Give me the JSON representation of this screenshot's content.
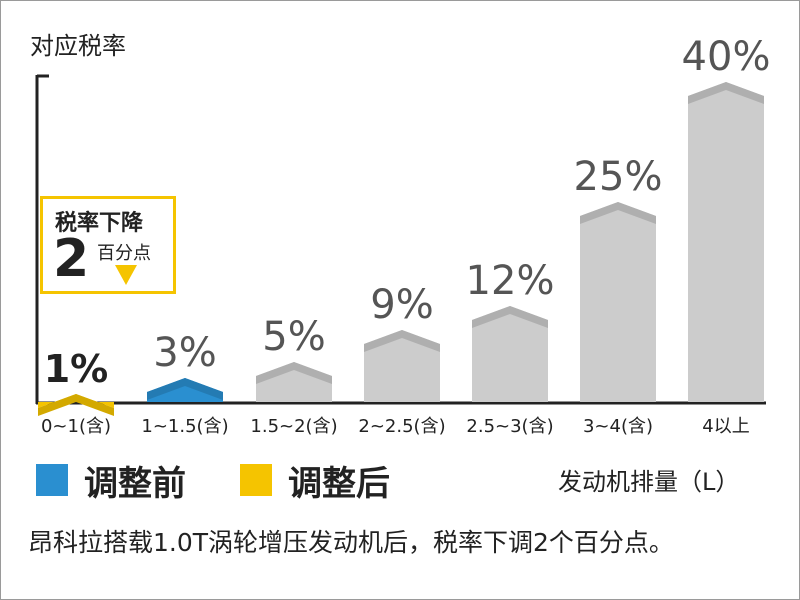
{
  "chart_data": {
    "type": "bar",
    "ylabel": "对应税率",
    "xlabel": "发动机排量（L）",
    "categories": [
      "0~1(含)",
      "1~1.5(含)",
      "1.5~2(含)",
      "2~2.5(含)",
      "2.5~3(含)",
      "3~4(含)",
      "4以上"
    ],
    "value_labels": [
      "1%",
      "3%",
      "5%",
      "9%",
      "12%",
      "25%",
      "40%"
    ],
    "series": [
      {
        "name": "调整前",
        "color": "#2a8fd0",
        "values": [
          null,
          3,
          5,
          9,
          12,
          25,
          40
        ]
      },
      {
        "name": "调整后",
        "color": "#f5c400",
        "values": [
          1,
          null,
          null,
          null,
          null,
          null,
          null
        ]
      }
    ],
    "ylim": [
      0,
      40
    ],
    "grid": false,
    "default_bar_color": "#cccccc"
  },
  "legend": [
    {
      "label": "调整前",
      "color": "#2a8fd0"
    },
    {
      "label": "调整后",
      "color": "#f5c400"
    }
  ],
  "callout": {
    "title": "税率下降",
    "number": "2",
    "unit": "百分点",
    "color": "#f5c400"
  },
  "caption": "昂科拉搭载1.0T涡轮增压发动机后，税率下调2个百分点。"
}
